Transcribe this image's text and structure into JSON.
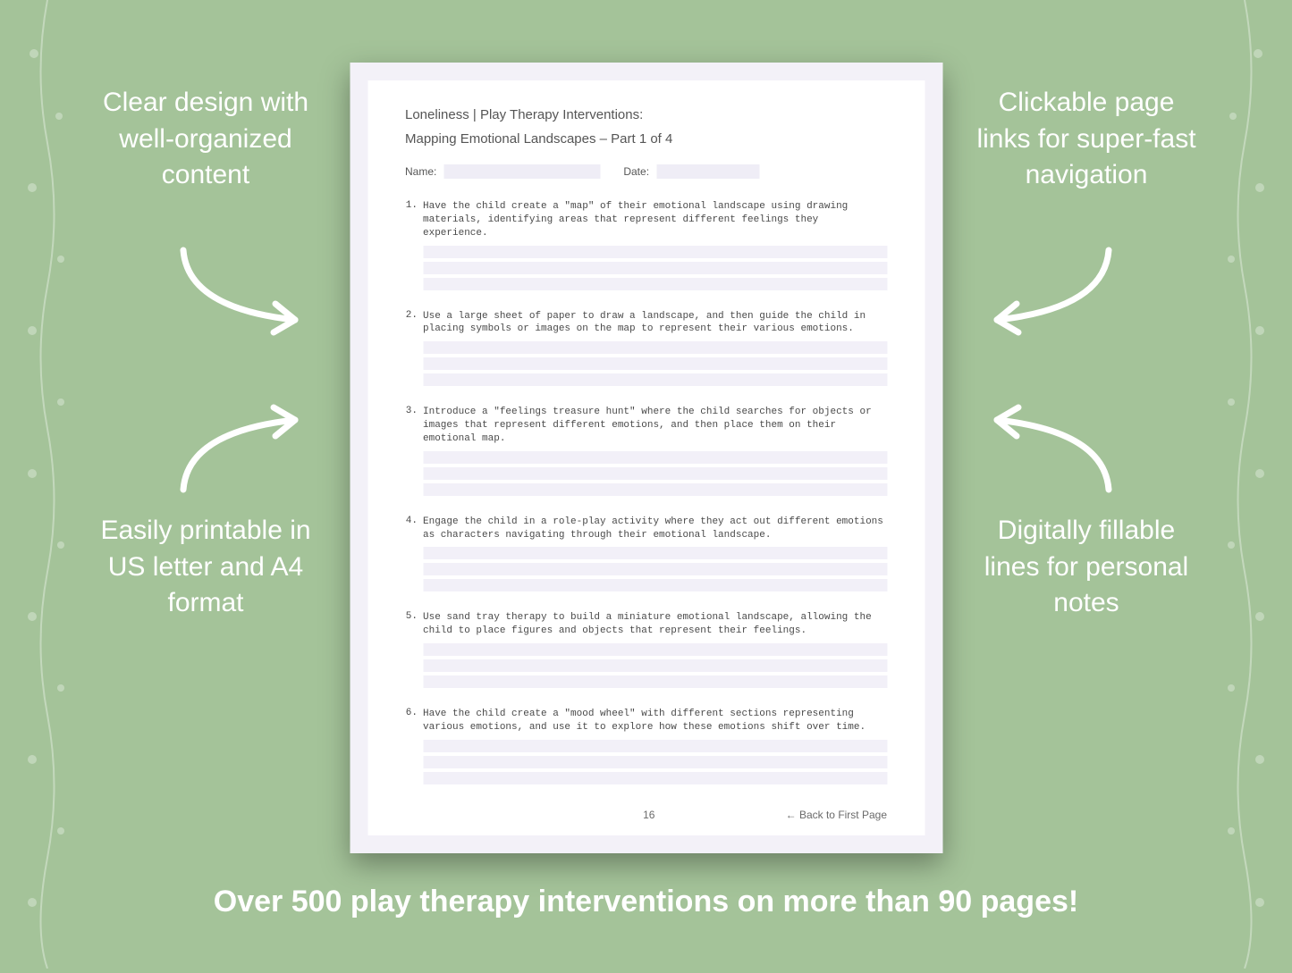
{
  "colors": {
    "background": "#a4c399",
    "page_outer": "#f3f1f8",
    "page_inner": "#ffffff",
    "fill_line": "#f2f0f8",
    "name_fill": "#efedf6",
    "callout_text": "#ffffff",
    "page_text": "#555555",
    "footer_text": "#6a6a6a",
    "shadow": "rgba(0,0,0,0.35)"
  },
  "typography": {
    "callout_fontsize": 30,
    "callout_weight": 300,
    "headline_fontsize": 34,
    "headline_weight": 600,
    "page_header_fontsize": 15,
    "item_fontsize": 11,
    "item_font": "Courier New",
    "footer_fontsize": 12
  },
  "callouts": {
    "top_left": "Clear design with well-organized content",
    "top_right": "Clickable page links for super-fast navigation",
    "bottom_left": "Easily printable in US letter and A4 format",
    "bottom_right": "Digitally fillable lines for personal notes"
  },
  "headline": "Over 500 play therapy interventions on more than 90 pages!",
  "page": {
    "header_line1": "Loneliness | Play Therapy Interventions:",
    "header_line2": "Mapping Emotional Landscapes – Part 1 of 4",
    "name_label": "Name:",
    "date_label": "Date:",
    "page_number": "16",
    "back_link": "← Back to First Page",
    "items": [
      {
        "n": "1.",
        "text": "Have the child create a \"map\" of their emotional landscape using drawing materials, identifying areas that represent different feelings they experience."
      },
      {
        "n": "2.",
        "text": "Use a large sheet of paper to draw a landscape, and then guide the child in placing symbols or images on the map to represent their various emotions."
      },
      {
        "n": "3.",
        "text": "Introduce a \"feelings treasure hunt\" where the child searches for objects or images that represent different emotions, and then place them on their emotional map."
      },
      {
        "n": "4.",
        "text": "Engage the child in a role-play activity where they act out different emotions as characters navigating through their emotional landscape."
      },
      {
        "n": "5.",
        "text": "Use sand tray therapy to build a miniature emotional landscape, allowing the child to place figures and objects that represent their feelings."
      },
      {
        "n": "6.",
        "text": "Have the child create a \"mood wheel\" with different sections representing various emotions, and use it to explore how these emotions shift over time."
      }
    ],
    "fill_lines_per_item": 3
  }
}
